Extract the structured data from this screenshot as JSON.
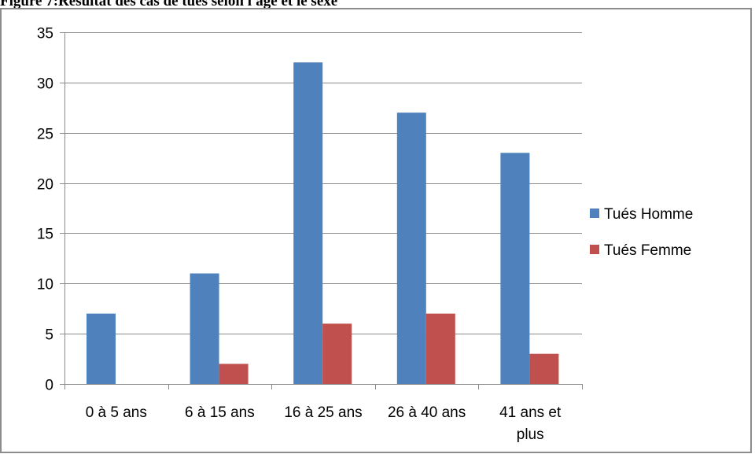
{
  "figure": {
    "title": "Figure 7:Résultat  des cas de tués selon l'âge et le sexe"
  },
  "colors": {
    "homme": "#4f81bd",
    "femme": "#c0504d",
    "grid": "#8c8c8c"
  },
  "chart_data": {
    "type": "bar",
    "categories": [
      "0 à 5 ans",
      "6 à 15 ans",
      "16 à 25 ans",
      "26 à 40 ans",
      "41 ans et plus"
    ],
    "category_lines": [
      [
        "0 à 5 ans"
      ],
      [
        "6 à 15 ans"
      ],
      [
        "16 à 25 ans"
      ],
      [
        "26 à 40 ans"
      ],
      [
        "41 ans et",
        "plus"
      ]
    ],
    "series": [
      {
        "name": "Tués Homme",
        "values": [
          7,
          11,
          32,
          27,
          23
        ]
      },
      {
        "name": "Tués Femme",
        "values": [
          0,
          2,
          6,
          7,
          3
        ]
      }
    ],
    "title": "",
    "xlabel": "",
    "ylabel": "",
    "ylim": [
      0,
      35
    ],
    "yticks": [
      0,
      5,
      10,
      15,
      20,
      25,
      30,
      35
    ],
    "grid": true,
    "legend": "right"
  }
}
